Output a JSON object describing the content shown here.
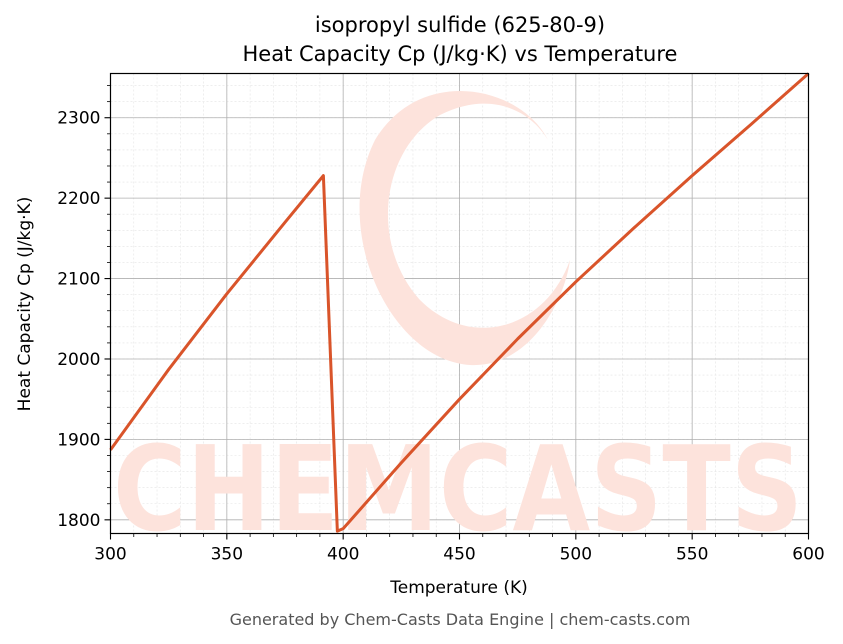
{
  "chart_data": {
    "type": "line",
    "title": "isopropyl sulfide (625-80-9)",
    "subtitle": "Heat Capacity Cp (J/kg·K) vs Temperature",
    "xlabel": "Temperature (K)",
    "ylabel": "Heat Capacity Cp (J/kg·K)",
    "xlim": [
      300,
      600
    ],
    "ylim": [
      1783,
      2355
    ],
    "xticks": [
      300,
      350,
      400,
      450,
      500,
      550,
      600
    ],
    "yticks": [
      1800,
      1900,
      2000,
      2100,
      2200,
      2300
    ],
    "grid": true,
    "line_color": "#d9542a",
    "series": [
      {
        "x": [
          300,
          325,
          350,
          375,
          391.5,
          397.5,
          400,
          425,
          450,
          475,
          500,
          525,
          550,
          575,
          600
        ],
        "values": [
          1887,
          1987,
          2081,
          2170,
          2228,
          1786,
          1789,
          1871,
          1950,
          2025,
          2096,
          2163,
          2228,
          2291,
          2355
        ]
      }
    ]
  },
  "watermark": {
    "text": "CHEMCASTS",
    "color": "#fde3dc"
  },
  "footer": "Generated by Chem-Casts Data Engine | chem-casts.com"
}
